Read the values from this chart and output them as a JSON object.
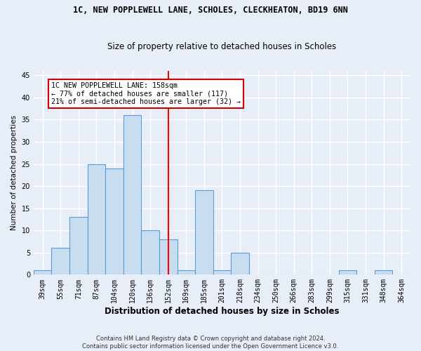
{
  "title1": "1C, NEW POPPLEWELL LANE, SCHOLES, CLECKHEATON, BD19 6NN",
  "title2": "Size of property relative to detached houses in Scholes",
  "xlabel": "Distribution of detached houses by size in Scholes",
  "ylabel": "Number of detached properties",
  "categories": [
    "39sqm",
    "55sqm",
    "71sqm",
    "87sqm",
    "104sqm",
    "120sqm",
    "136sqm",
    "152sqm",
    "169sqm",
    "185sqm",
    "201sqm",
    "218sqm",
    "234sqm",
    "250sqm",
    "266sqm",
    "283sqm",
    "299sqm",
    "315sqm",
    "331sqm",
    "348sqm",
    "364sqm"
  ],
  "values": [
    1,
    6,
    13,
    25,
    24,
    36,
    10,
    8,
    1,
    19,
    1,
    5,
    0,
    0,
    0,
    0,
    0,
    1,
    0,
    1,
    0
  ],
  "bar_color": "#c9ddf0",
  "bar_edge_color": "#5b9bd5",
  "background_color": "#e8eef8",
  "grid_color": "#ffffff",
  "red_line_x": 7.0,
  "annotation_text": "1C NEW POPPLEWELL LANE: 158sqm\n← 77% of detached houses are smaller (117)\n21% of semi-detached houses are larger (32) →",
  "annotation_box_color": "#ffffff",
  "annotation_box_edge": "#cc0000",
  "ylim": [
    0,
    46
  ],
  "yticks": [
    0,
    5,
    10,
    15,
    20,
    25,
    30,
    35,
    40,
    45
  ],
  "footer": "Contains HM Land Registry data © Crown copyright and database right 2024.\nContains public sector information licensed under the Open Government Licence v3.0.",
  "title1_fontsize": 8.5,
  "title2_fontsize": 8.5,
  "xlabel_fontsize": 8.5,
  "ylabel_fontsize": 7.5,
  "tick_fontsize": 7.0,
  "annotation_fontsize": 7.2,
  "footer_fontsize": 6.0
}
